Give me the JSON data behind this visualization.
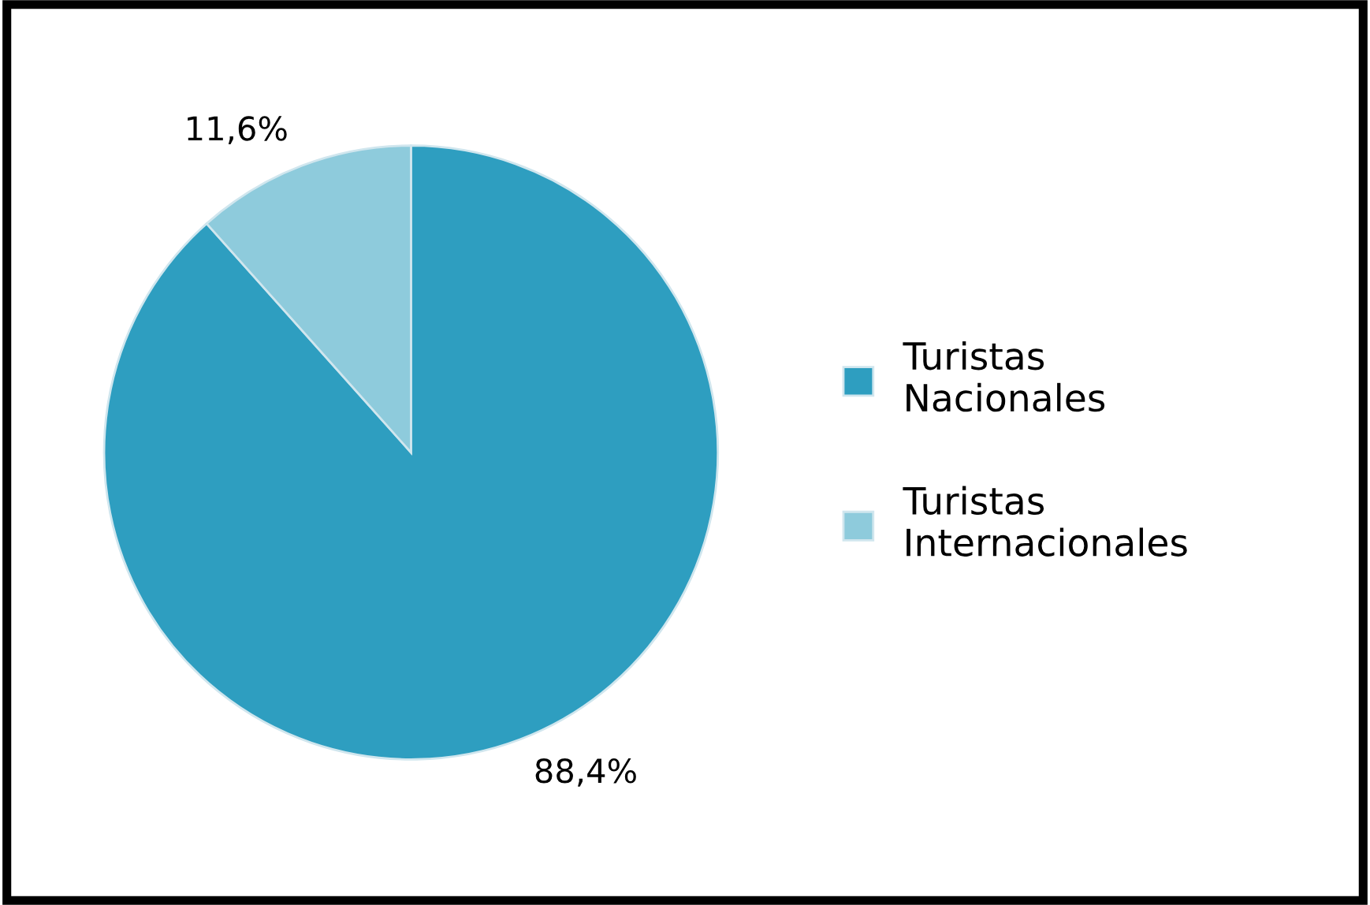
{
  "chart_data": {
    "type": "pie",
    "categories": [
      "Turistas\nNacionales",
      "Turistas\nInternacionales"
    ],
    "values": [
      88.4,
      11.6
    ],
    "colors": [
      "#2e9ec0",
      "#8ecbdc"
    ],
    "value_labels": [
      "88,4%",
      "11,6%"
    ],
    "legend": "right"
  }
}
